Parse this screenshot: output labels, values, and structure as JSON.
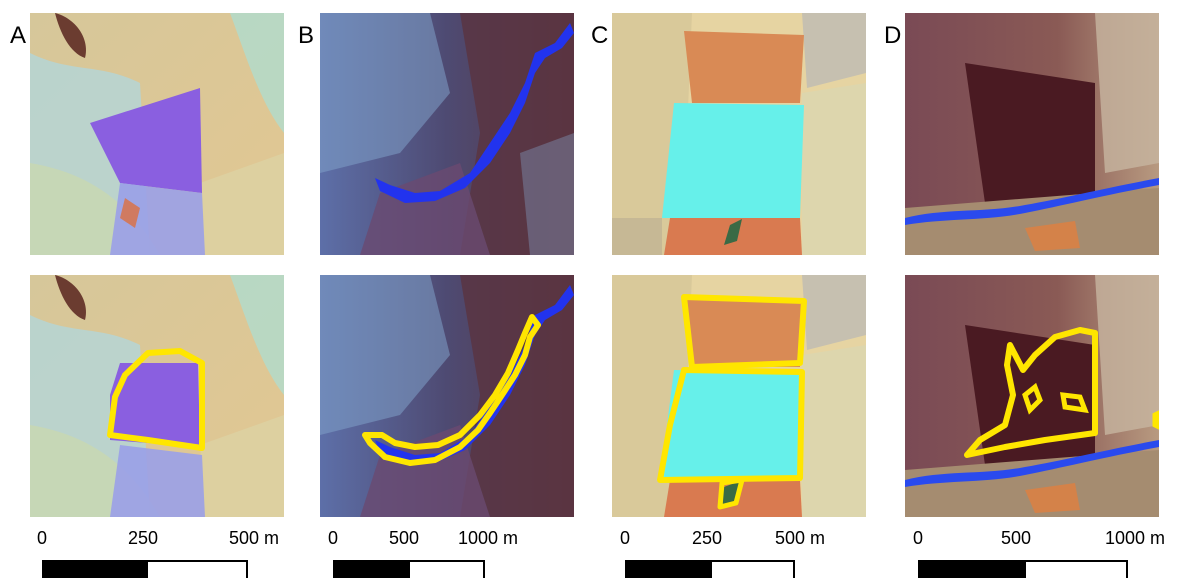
{
  "panels": [
    {
      "letter": "A",
      "ticks": [
        "0",
        "250",
        "500 m"
      ]
    },
    {
      "letter": "B",
      "ticks": [
        "0",
        "500",
        "1000 m"
      ]
    },
    {
      "letter": "C",
      "ticks": [
        "0",
        "250",
        "500 m"
      ]
    },
    {
      "letter": "D",
      "ticks": [
        "0",
        "500",
        "1000 m"
      ]
    }
  ],
  "colors": {
    "outline": "#ffe600",
    "scalebar_fill": "#000000"
  }
}
